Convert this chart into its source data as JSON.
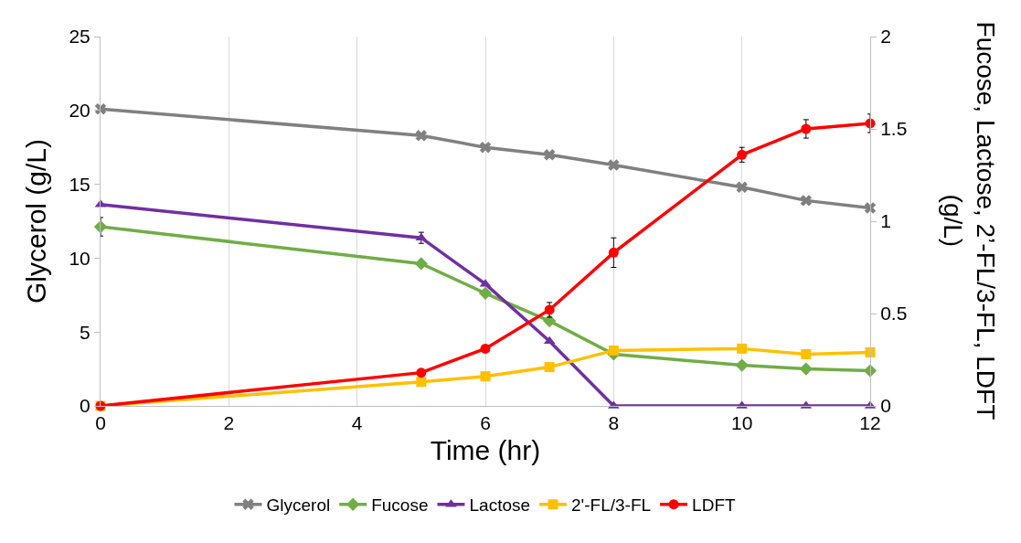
{
  "chart_data": {
    "type": "line",
    "xlabel": "Time (hr)",
    "ylabel": "Glycerol (g/L)",
    "y2label": "Fucose, Lactose, 2’-FL/3-FL, LDFT (g/L)",
    "x": [
      0,
      5,
      6,
      7,
      8,
      10,
      11,
      12
    ],
    "series": [
      {
        "name": "Glycerol",
        "color": "#808080",
        "marker": "cross",
        "values": [
          20.1,
          18.3,
          17.5,
          17.0,
          16.3,
          14.8,
          13.9,
          13.4
        ]
      },
      {
        "name": "Fucose",
        "color": "#70ad47",
        "marker": "diamond",
        "axis": "y2",
        "values": [
          0.97,
          0.77,
          0.61,
          0.46,
          0.28,
          0.22,
          0.2,
          0.19
        ],
        "errors": [
          0.05,
          null,
          null,
          null,
          null,
          null,
          null,
          null
        ]
      },
      {
        "name": "Lactose",
        "color": "#7030a0",
        "marker": "triangle",
        "axis": "y2",
        "values": [
          1.09,
          0.91,
          0.66,
          0.35,
          0,
          0,
          0,
          0
        ],
        "errors": [
          null,
          0.03,
          null,
          null,
          null,
          null,
          null,
          null
        ]
      },
      {
        "name": "2'-FL/3-FL",
        "color": "#ffc000",
        "marker": "square",
        "axis": "y2",
        "values": [
          0,
          0.13,
          0.16,
          0.21,
          0.3,
          0.31,
          0.28,
          0.29
        ]
      },
      {
        "name": "LDFT",
        "color": "#ff0000",
        "marker": "circle",
        "axis": "y2",
        "values": [
          0,
          0.18,
          0.31,
          0.52,
          0.83,
          1.36,
          1.5,
          1.53
        ],
        "errors": [
          null,
          null,
          null,
          0.04,
          0.08,
          0.04,
          0.05,
          0.05
        ]
      }
    ],
    "xlim": [
      0,
      12
    ],
    "xticks": [
      0,
      2,
      4,
      6,
      8,
      10,
      12
    ],
    "ylim": [
      0,
      25
    ],
    "yticks": [
      0,
      5,
      10,
      15,
      20,
      25
    ],
    "y2lim": [
      0,
      2
    ],
    "y2ticks": [
      0,
      0.5,
      1,
      1.5,
      2
    ],
    "grid": "x",
    "legend": "bottom",
    "line_style": "solid"
  }
}
